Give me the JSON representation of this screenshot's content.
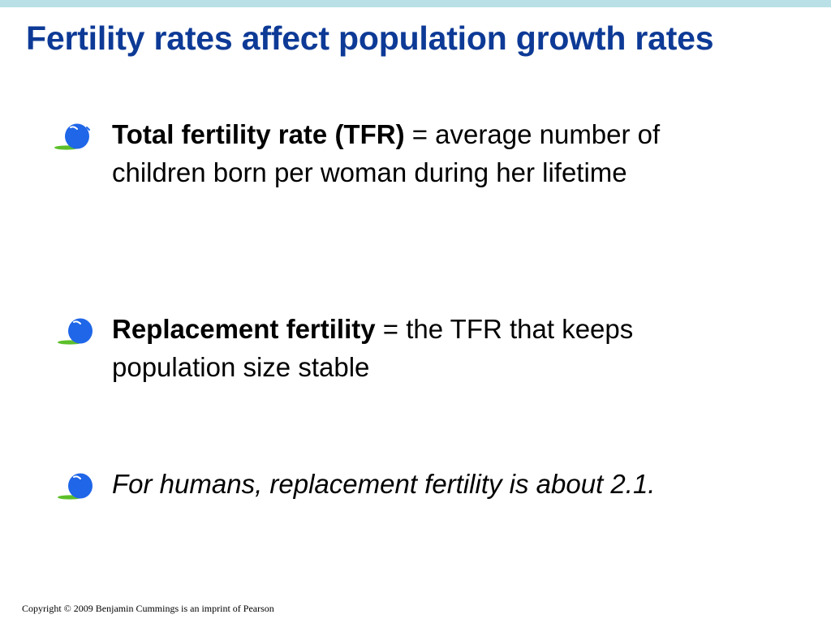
{
  "slide": {
    "title": "Fertility rates affect population growth rates",
    "bullets": [
      {
        "term": "Total fertility rate (TFR)",
        "text": " = average number of children born per woman during her lifetime"
      },
      {
        "term": "Replacement fertility",
        "text": " = the TFR that keeps population size stable"
      },
      {
        "term": "",
        "text": "For humans, replacement fertility is about 2.1."
      }
    ],
    "copyright": "Copyright © 2009 Benjamin Cummings is an imprint of Pearson"
  },
  "colors": {
    "top_bar": "#b9e0e6",
    "title": "#0d3a96",
    "bullet_ball": "#1f66e8",
    "bullet_shadow": "#5cbf2a"
  },
  "icons": {
    "bullet": "blue-ball-bullet-icon"
  }
}
